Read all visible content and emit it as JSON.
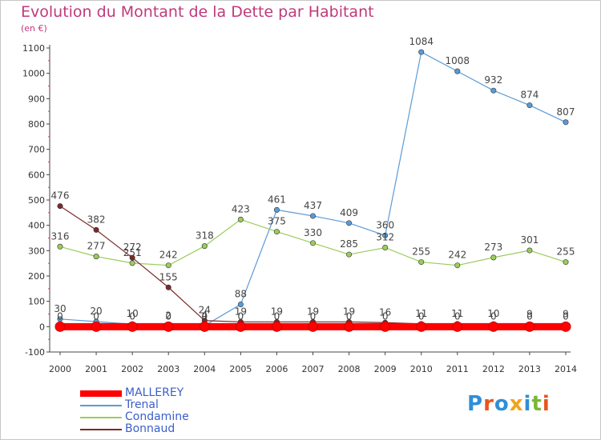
{
  "title": "Evolution du Montant de la Dette par Habitant",
  "subtitle": "(en €)",
  "logo_text": "Proxiti",
  "logo_colors": [
    "#2f8fd6",
    "#e8541c",
    "#2f8fd6",
    "#f2a31b",
    "#2f8fd6",
    "#7ab833",
    "#e8541c"
  ],
  "chart_data": {
    "type": "line",
    "title": "Evolution du Montant de la Dette par Habitant",
    "ylabel": "(en €)",
    "xlabel": "",
    "ylim": [
      -100,
      1100
    ],
    "yticks": [
      -100,
      0,
      100,
      200,
      300,
      400,
      500,
      600,
      700,
      800,
      900,
      1000,
      1100
    ],
    "x": [
      "2000",
      "2001",
      "2002",
      "2003",
      "2004",
      "2005",
      "2006",
      "2007",
      "2008",
      "2009",
      "2010",
      "2011",
      "2012",
      "2013",
      "2014"
    ],
    "grid": false,
    "legend_position": "bottom-left",
    "series": [
      {
        "name": "MALLEREY",
        "color": "#ff0000",
        "values": [
          0,
          0,
          0,
          0,
          0,
          0,
          0,
          0,
          0,
          0,
          0,
          0,
          0,
          0,
          0
        ],
        "labels": [
          "0",
          "0",
          "0",
          "0",
          "0",
          "0",
          "0",
          "0",
          "0",
          "0",
          "0",
          "0",
          "0",
          "0",
          "0"
        ]
      },
      {
        "name": "Trenal",
        "color": "#5b9bd5",
        "values": [
          30,
          20,
          10,
          2,
          4,
          88,
          461,
          437,
          409,
          360,
          1084,
          1008,
          932,
          874,
          807
        ],
        "labels": [
          "30",
          "20",
          "10",
          "2",
          "4",
          "88",
          "461",
          "437",
          "409",
          "360",
          "1084",
          "1008",
          "932",
          "874",
          "807"
        ]
      },
      {
        "name": "Condamine",
        "color": "#9acd5a",
        "values": [
          316,
          277,
          251,
          242,
          318,
          423,
          375,
          330,
          285,
          312,
          255,
          242,
          273,
          301,
          255
        ],
        "labels": [
          "316",
          "277",
          "251",
          "242",
          "318",
          "423",
          "375",
          "330",
          "285",
          "312",
          "255",
          "242",
          "273",
          "301",
          "255"
        ]
      },
      {
        "name": "Bonnaud",
        "color": "#7b2a2a",
        "values": [
          476,
          382,
          272,
          155,
          24,
          19,
          19,
          19,
          19,
          16,
          11,
          11,
          10,
          9,
          9
        ],
        "labels": [
          "476",
          "382",
          "272",
          "155",
          "24",
          "19",
          "19",
          "19",
          "19",
          "16",
          "11",
          "11",
          "10",
          "9",
          "9"
        ]
      }
    ]
  }
}
